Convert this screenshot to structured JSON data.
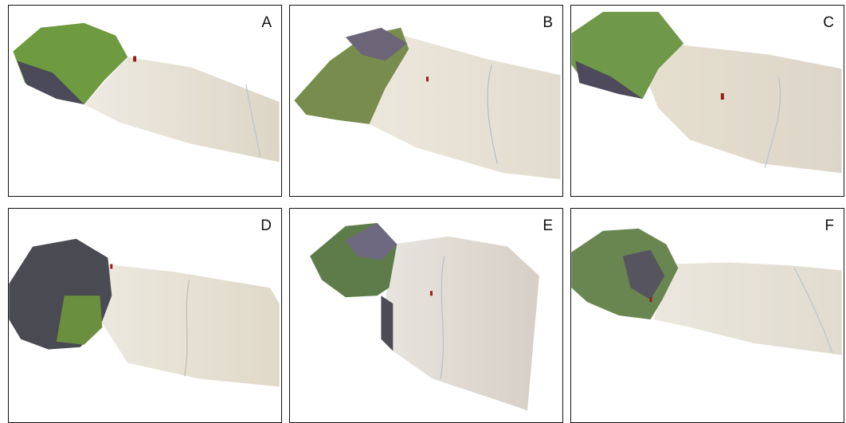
{
  "panels": [
    {
      "label": "A"
    },
    {
      "label": "B"
    },
    {
      "label": "C"
    },
    {
      "label": "D"
    },
    {
      "label": "E"
    },
    {
      "label": "F"
    }
  ],
  "colors": {
    "sand": "#e6e0d3",
    "sand_shadow": "#cfc6b4",
    "vegetation": "#7fa84a",
    "rock": "#5a5868",
    "marker": "#9b1b1b",
    "frame": "#111111"
  }
}
